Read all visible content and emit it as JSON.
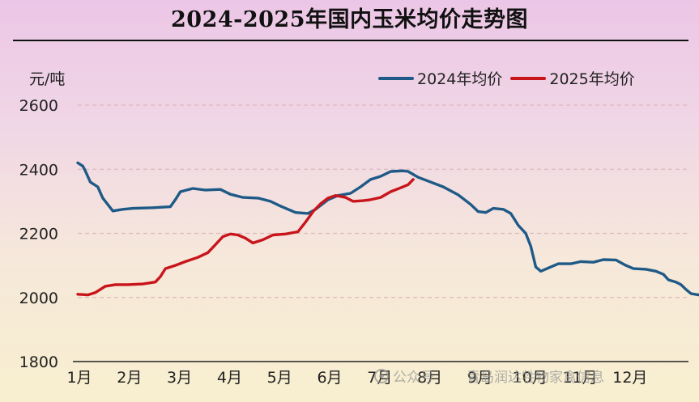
{
  "title": "2024-2025年国内玉米均价走势图",
  "watermark": {
    "platform": "公众号",
    "account": "青岛润达牲物家禽信息",
    "icon": "wechat-icon"
  },
  "colors": {
    "series_2024": "#1f5a87",
    "series_2025": "#c8151b",
    "grid": "#d9b9bd",
    "axis": "#222222"
  },
  "chart_data": {
    "type": "line",
    "ylabel": "元/吨",
    "xlabel": "",
    "ylim": [
      1800,
      2600
    ],
    "yticks": [
      1800,
      2000,
      2200,
      2400,
      2600
    ],
    "categories": [
      "1月",
      "2月",
      "3月",
      "4月",
      "5月",
      "6月",
      "7月",
      "8月",
      "9月",
      "10月",
      "11月",
      "12月"
    ],
    "xlim": [
      1,
      13.2
    ],
    "grid": true,
    "legend_position": "top-right",
    "series": [
      {
        "name": "2024年均价",
        "color": "#1f5a87",
        "points": [
          [
            1.0,
            2420
          ],
          [
            1.1,
            2410
          ],
          [
            1.15,
            2395
          ],
          [
            1.25,
            2360
          ],
          [
            1.4,
            2345
          ],
          [
            1.5,
            2310
          ],
          [
            1.7,
            2270
          ],
          [
            1.9,
            2275
          ],
          [
            2.1,
            2278
          ],
          [
            2.5,
            2280
          ],
          [
            2.85,
            2283
          ],
          [
            2.95,
            2305
          ],
          [
            3.05,
            2330
          ],
          [
            3.3,
            2340
          ],
          [
            3.55,
            2335
          ],
          [
            3.85,
            2337
          ],
          [
            4.05,
            2322
          ],
          [
            4.3,
            2312
          ],
          [
            4.6,
            2310
          ],
          [
            4.85,
            2300
          ],
          [
            5.05,
            2285
          ],
          [
            5.35,
            2265
          ],
          [
            5.6,
            2262
          ],
          [
            5.75,
            2275
          ],
          [
            6.0,
            2305
          ],
          [
            6.2,
            2318
          ],
          [
            6.45,
            2325
          ],
          [
            6.65,
            2345
          ],
          [
            6.85,
            2368
          ],
          [
            7.05,
            2378
          ],
          [
            7.25,
            2393
          ],
          [
            7.5,
            2395
          ],
          [
            7.6,
            2393
          ],
          [
            7.8,
            2375
          ],
          [
            8.05,
            2360
          ],
          [
            8.3,
            2345
          ],
          [
            8.6,
            2320
          ],
          [
            8.85,
            2290
          ],
          [
            9.0,
            2268
          ],
          [
            9.15,
            2265
          ],
          [
            9.3,
            2278
          ],
          [
            9.5,
            2275
          ],
          [
            9.65,
            2262
          ],
          [
            9.8,
            2225
          ],
          [
            9.95,
            2200
          ],
          [
            10.05,
            2160
          ],
          [
            10.15,
            2095
          ],
          [
            10.25,
            2082
          ],
          [
            10.4,
            2092
          ],
          [
            10.6,
            2105
          ],
          [
            10.85,
            2105
          ],
          [
            11.05,
            2112
          ],
          [
            11.3,
            2110
          ],
          [
            11.5,
            2118
          ],
          [
            11.75,
            2117
          ],
          [
            11.95,
            2100
          ],
          [
            12.1,
            2090
          ],
          [
            12.35,
            2088
          ],
          [
            12.55,
            2082
          ],
          [
            12.7,
            2072
          ],
          [
            12.8,
            2055
          ],
          [
            12.95,
            2048
          ],
          [
            13.05,
            2040
          ],
          [
            13.15,
            2025
          ],
          [
            13.25,
            2012
          ],
          [
            13.4,
            2008
          ],
          [
            13.5,
            2012
          ]
        ]
      },
      {
        "name": "2025年均价",
        "color": "#c8151b",
        "points": [
          [
            1.0,
            2010
          ],
          [
            1.2,
            2008
          ],
          [
            1.35,
            2015
          ],
          [
            1.55,
            2035
          ],
          [
            1.75,
            2040
          ],
          [
            2.0,
            2040
          ],
          [
            2.3,
            2042
          ],
          [
            2.55,
            2048
          ],
          [
            2.65,
            2065
          ],
          [
            2.75,
            2090
          ],
          [
            2.95,
            2100
          ],
          [
            3.15,
            2112
          ],
          [
            3.4,
            2125
          ],
          [
            3.6,
            2140
          ],
          [
            3.75,
            2165
          ],
          [
            3.9,
            2190
          ],
          [
            4.05,
            2198
          ],
          [
            4.2,
            2195
          ],
          [
            4.35,
            2185
          ],
          [
            4.5,
            2170
          ],
          [
            4.7,
            2180
          ],
          [
            4.9,
            2195
          ],
          [
            5.15,
            2198
          ],
          [
            5.4,
            2205
          ],
          [
            5.55,
            2235
          ],
          [
            5.7,
            2268
          ],
          [
            5.85,
            2292
          ],
          [
            6.0,
            2310
          ],
          [
            6.15,
            2318
          ],
          [
            6.35,
            2312
          ],
          [
            6.5,
            2300
          ],
          [
            6.7,
            2302
          ],
          [
            6.85,
            2305
          ],
          [
            7.05,
            2312
          ],
          [
            7.25,
            2330
          ],
          [
            7.45,
            2342
          ],
          [
            7.6,
            2352
          ],
          [
            7.7,
            2368
          ]
        ]
      }
    ]
  }
}
